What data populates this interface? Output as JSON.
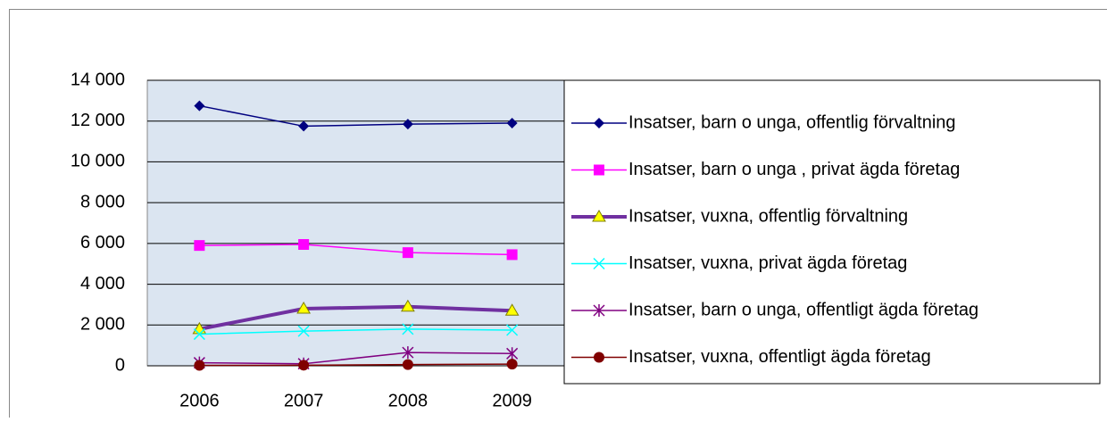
{
  "chart_data": {
    "type": "line",
    "categories": [
      "2006",
      "2007",
      "2008",
      "2009"
    ],
    "ylim": [
      0,
      14000
    ],
    "yticks": [
      0,
      {
        "value": 2000,
        "label": "2 000"
      },
      {
        "value": 4000,
        "label": "4 000"
      },
      {
        "value": 6000,
        "label": "6 000"
      },
      {
        "value": 8000,
        "label": "8 000"
      },
      {
        "value": 10000,
        "label": "10 000"
      },
      {
        "value": 12000,
        "label": "12 000"
      },
      {
        "value": 14000,
        "label": "14 000"
      }
    ],
    "grid": true,
    "legend": "right",
    "series": [
      {
        "name": "Insatser, barn o unga, offentlig förvaltning",
        "color": "#000080",
        "marker": "diamond",
        "values": [
          12750,
          11750,
          11850,
          11900
        ]
      },
      {
        "name": "Insatser, barn o unga , privat ägda företag",
        "color": "#ff00ff",
        "marker": "square",
        "values": [
          5900,
          5950,
          5550,
          5450
        ]
      },
      {
        "name": "Insatser, vuxna, offentlig förvaltning",
        "color": "#7030a0",
        "marker": "triangle",
        "values": [
          1800,
          2800,
          2900,
          2700
        ]
      },
      {
        "name": "Insatser, vuxna, privat ägda företag",
        "color": "#00ffff",
        "marker": "x",
        "values": [
          1550,
          1700,
          1800,
          1750
        ]
      },
      {
        "name": "Insatser,  barn o unga, offentligt ägda företag",
        "color": "#800080",
        "marker": "star",
        "values": [
          150,
          100,
          650,
          600
        ]
      },
      {
        "name": "Insatser,  vuxna, offentligt ägda företag",
        "color": "#800000",
        "marker": "circle",
        "values": [
          20,
          30,
          60,
          80
        ]
      }
    ]
  }
}
